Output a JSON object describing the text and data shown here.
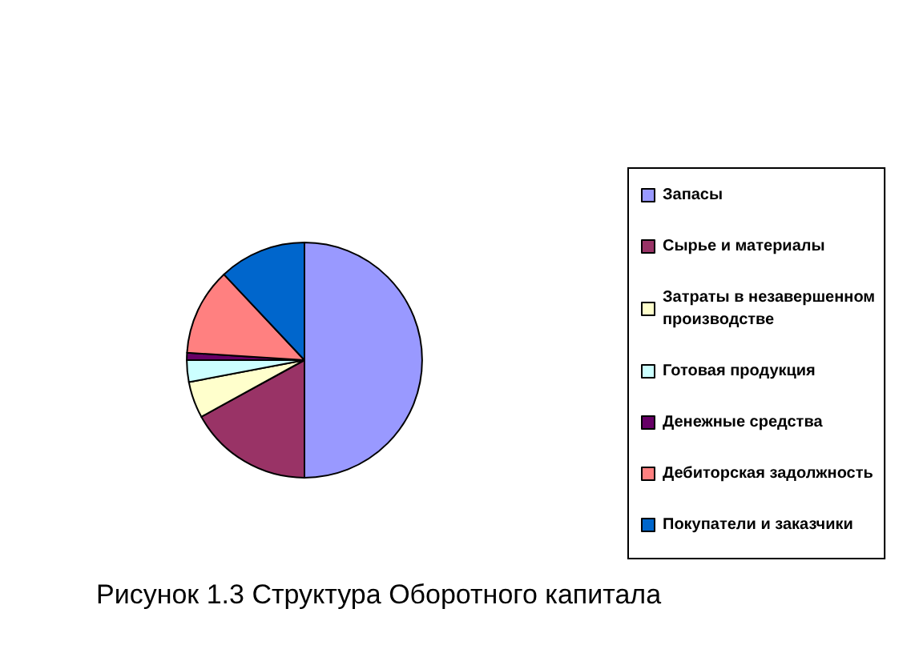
{
  "chart_data": {
    "type": "pie",
    "title": "Рисунок 1.3 Структура Оборотного капитала",
    "categories": [
      "Запасы",
      "Сырье и материалы",
      "Затраты в незавершенном производстве",
      "Готовая продукция",
      "Денежные средства",
      "Дебиторская задолжность",
      "Покупатели и заказчики"
    ],
    "values": [
      50,
      17,
      5,
      3,
      1,
      12,
      12
    ],
    "colors": [
      "#9999ff",
      "#993366",
      "#ffffcc",
      "#ccffff",
      "#660066",
      "#ff8080",
      "#0066cc"
    ],
    "legend": "right"
  }
}
